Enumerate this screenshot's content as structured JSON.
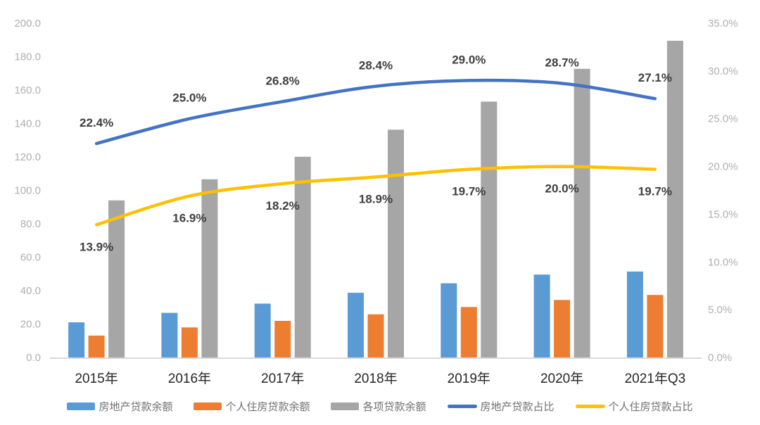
{
  "chart_data": {
    "type": "combo-bar-line",
    "categories": [
      "2015年",
      "2016年",
      "2017年",
      "2018年",
      "2019年",
      "2020年",
      "2021年Q3"
    ],
    "bar_series": [
      {
        "name": "房地产贷款余额",
        "color": "#5B9BD5",
        "axis": "left",
        "values": [
          21.0,
          26.7,
          32.2,
          38.7,
          44.4,
          49.6,
          51.4
        ]
      },
      {
        "name": "个人住房贷款余额",
        "color": "#ED7D31",
        "axis": "left",
        "values": [
          13.1,
          18.0,
          21.9,
          25.8,
          30.2,
          34.4,
          37.4
        ]
      },
      {
        "name": "各项贷款余额",
        "color": "#A6A6A6",
        "axis": "left",
        "values": [
          94.0,
          106.6,
          120.1,
          136.3,
          153.1,
          172.7,
          189.5
        ]
      }
    ],
    "line_series": [
      {
        "name": "房地产贷款占比",
        "color": "#4472C4",
        "axis": "right",
        "values": [
          22.4,
          25.0,
          26.8,
          28.4,
          29.0,
          28.7,
          27.1
        ],
        "labels": [
          "22.4%",
          "25.0%",
          "26.8%",
          "28.4%",
          "29.0%",
          "28.7%",
          "27.1%"
        ],
        "label_position": "above"
      },
      {
        "name": "个人住房贷款占比",
        "color": "#FFC000",
        "axis": "right",
        "values": [
          13.9,
          16.9,
          18.2,
          18.9,
          19.7,
          20.0,
          19.7
        ],
        "labels": [
          "13.9%",
          "16.9%",
          "18.2%",
          "18.9%",
          "19.7%",
          "20.0%",
          "19.7%"
        ],
        "label_position": "below"
      }
    ],
    "left_axis": {
      "min": 0,
      "max": 200,
      "ticks": [
        "200.0",
        "180.0",
        "160.0",
        "140.0",
        "120.0",
        "100.0",
        "80.0",
        "60.0",
        "40.0",
        "20.0",
        "0.0"
      ]
    },
    "right_axis": {
      "min": 0,
      "max": 35,
      "ticks": [
        "35.0%",
        "30.0%",
        "25.0%",
        "20.0%",
        "15.0%",
        "10.0%",
        "5.0%",
        "0.0%"
      ]
    },
    "legend": {
      "items": [
        {
          "label": "房地产贷款余额",
          "color": "#5B9BD5",
          "marker": "bar"
        },
        {
          "label": "个人住房贷款余额",
          "color": "#ED7D31",
          "marker": "bar"
        },
        {
          "label": "各项贷款余额",
          "color": "#A6A6A6",
          "marker": "bar"
        },
        {
          "label": "房地产贷款占比",
          "color": "#4472C4",
          "marker": "line"
        },
        {
          "label": "个人住房贷款占比",
          "color": "#FFC000",
          "marker": "line"
        }
      ]
    },
    "grid": false,
    "legend_position": "bottom"
  },
  "styles": {
    "background": "#ffffff",
    "bar_blue": "#5B9BD5",
    "bar_orange": "#ED7D31",
    "bar_gray": "#A6A6A6",
    "line_blue": "#4472C4",
    "line_yellow": "#FFC000",
    "data_label_color": "#3F3F3F",
    "tick_label_color": "#AFAFAF",
    "category_label_color": "#262626",
    "legend_text_color": "#6F6F6F",
    "axis_line_color": "#D9D9D9"
  }
}
